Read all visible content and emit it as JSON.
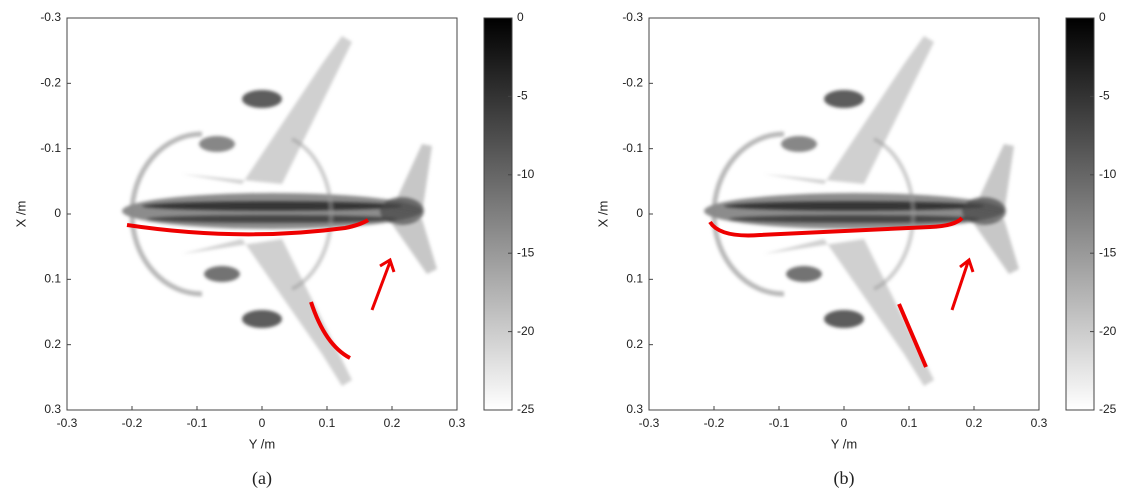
{
  "chart_data": [
    {
      "type": "image",
      "panel_label": "(a)",
      "xlabel": "Y /m",
      "ylabel": "X /m",
      "xlim": [
        -0.3,
        0.3
      ],
      "xticks": [
        -0.3,
        -0.2,
        -0.1,
        0,
        0.1,
        0.2,
        0.3
      ],
      "ylim": [
        0.3,
        -0.3
      ],
      "yticks": [
        -0.3,
        -0.2,
        -0.1,
        0,
        0.1,
        0.2,
        0.3
      ],
      "clim": [
        -25,
        0
      ],
      "cticks": [
        0,
        -5,
        -10,
        -15,
        -20,
        -25
      ]
    },
    {
      "type": "image",
      "panel_label": "(b)",
      "xlabel": "Y /m",
      "ylabel": "X /m",
      "xlim": [
        -0.3,
        0.3
      ],
      "xticks": [
        -0.3,
        -0.2,
        -0.1,
        0,
        0.1,
        0.2,
        0.3
      ],
      "ylim": [
        0.3,
        -0.3
      ],
      "yticks": [
        -0.3,
        -0.2,
        -0.1,
        0,
        0.1,
        0.2,
        0.3
      ],
      "clim": [
        -25,
        0
      ],
      "cticks": [
        0,
        -5,
        -10,
        -15,
        -20,
        -25
      ]
    }
  ]
}
